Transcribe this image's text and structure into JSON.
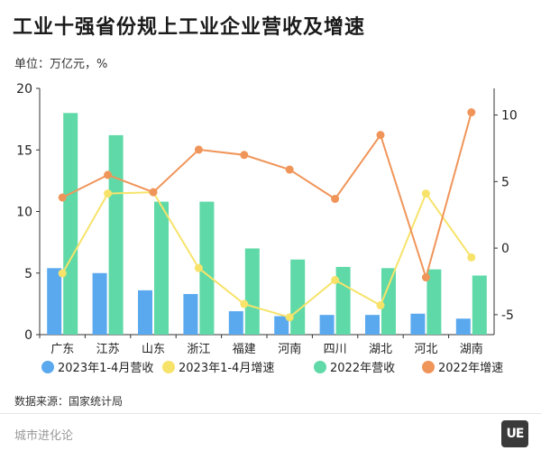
{
  "title": "工业十强省份规上工业企业营收及增速",
  "unit_label": "单位：万亿元，%",
  "source": "数据来源：国家统计局",
  "footer_brand": "城市进化论",
  "logo_text": "UE",
  "chart_data": {
    "type": "bar",
    "categories": [
      "广东",
      "江苏",
      "山东",
      "浙江",
      "福建",
      "河南",
      "四川",
      "湖北",
      "河北",
      "湖南"
    ],
    "series": [
      {
        "name": "2023年1-4月营收",
        "kind": "bar",
        "axis": "left",
        "color": "#5aa9ef",
        "values": [
          5.4,
          5.0,
          3.6,
          3.3,
          1.9,
          1.5,
          1.6,
          1.6,
          1.7,
          1.3
        ]
      },
      {
        "name": "2022年营收",
        "kind": "bar",
        "axis": "left",
        "color": "#5fd9a7",
        "values": [
          18.0,
          16.2,
          10.8,
          10.8,
          7.0,
          6.1,
          5.5,
          5.4,
          5.3,
          4.8
        ]
      },
      {
        "name": "2023年1-4月增速",
        "kind": "line",
        "axis": "right",
        "color": "#f7e36a",
        "values": [
          -1.9,
          4.1,
          4.2,
          -1.5,
          -4.2,
          -5.2,
          -2.4,
          -4.3,
          4.1,
          -0.7
        ]
      },
      {
        "name": "2022年增速",
        "kind": "line",
        "axis": "right",
        "color": "#f0955a",
        "values": [
          3.8,
          5.5,
          4.2,
          7.4,
          7.0,
          5.9,
          3.7,
          8.5,
          -2.2,
          10.2
        ]
      }
    ],
    "legend_order": [
      "2023年1-4月营收",
      "2023年1-4月增速",
      "2022年营收",
      "2022年增速"
    ],
    "ylim": [
      0,
      20
    ],
    "yticks": [
      0,
      5,
      10,
      15,
      20
    ],
    "y2lim": [
      -6.5,
      12
    ],
    "y2ticks": [
      -5,
      0,
      5,
      10
    ],
    "grid": false,
    "legend_position": "bottom"
  }
}
